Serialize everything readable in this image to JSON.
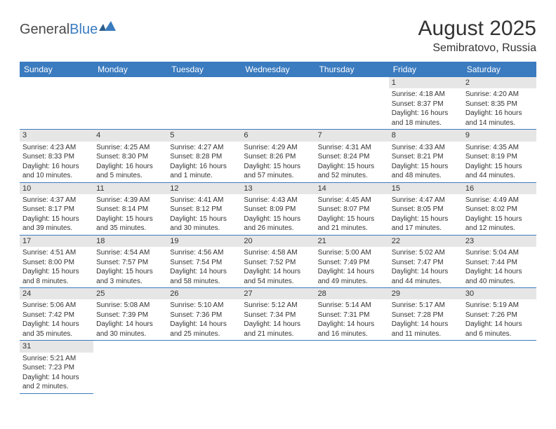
{
  "brand": {
    "part1": "General",
    "part2": "Blue"
  },
  "header": {
    "title": "August 2025",
    "location": "Semibratovo, Russia"
  },
  "colors": {
    "header_bg": "#3b7bbf",
    "header_text": "#ffffff",
    "daynum_bg": "#e6e6e6",
    "cell_border": "#3b7bbf",
    "body_text": "#333333",
    "logo_blue": "#3b7bbf"
  },
  "dayNames": [
    "Sunday",
    "Monday",
    "Tuesday",
    "Wednesday",
    "Thursday",
    "Friday",
    "Saturday"
  ],
  "weeks": [
    [
      null,
      null,
      null,
      null,
      null,
      {
        "n": "1",
        "sunrise": "Sunrise: 4:18 AM",
        "sunset": "Sunset: 8:37 PM",
        "daylight": "Daylight: 16 hours and 18 minutes."
      },
      {
        "n": "2",
        "sunrise": "Sunrise: 4:20 AM",
        "sunset": "Sunset: 8:35 PM",
        "daylight": "Daylight: 16 hours and 14 minutes."
      }
    ],
    [
      {
        "n": "3",
        "sunrise": "Sunrise: 4:23 AM",
        "sunset": "Sunset: 8:33 PM",
        "daylight": "Daylight: 16 hours and 10 minutes."
      },
      {
        "n": "4",
        "sunrise": "Sunrise: 4:25 AM",
        "sunset": "Sunset: 8:30 PM",
        "daylight": "Daylight: 16 hours and 5 minutes."
      },
      {
        "n": "5",
        "sunrise": "Sunrise: 4:27 AM",
        "sunset": "Sunset: 8:28 PM",
        "daylight": "Daylight: 16 hours and 1 minute."
      },
      {
        "n": "6",
        "sunrise": "Sunrise: 4:29 AM",
        "sunset": "Sunset: 8:26 PM",
        "daylight": "Daylight: 15 hours and 57 minutes."
      },
      {
        "n": "7",
        "sunrise": "Sunrise: 4:31 AM",
        "sunset": "Sunset: 8:24 PM",
        "daylight": "Daylight: 15 hours and 52 minutes."
      },
      {
        "n": "8",
        "sunrise": "Sunrise: 4:33 AM",
        "sunset": "Sunset: 8:21 PM",
        "daylight": "Daylight: 15 hours and 48 minutes."
      },
      {
        "n": "9",
        "sunrise": "Sunrise: 4:35 AM",
        "sunset": "Sunset: 8:19 PM",
        "daylight": "Daylight: 15 hours and 44 minutes."
      }
    ],
    [
      {
        "n": "10",
        "sunrise": "Sunrise: 4:37 AM",
        "sunset": "Sunset: 8:17 PM",
        "daylight": "Daylight: 15 hours and 39 minutes."
      },
      {
        "n": "11",
        "sunrise": "Sunrise: 4:39 AM",
        "sunset": "Sunset: 8:14 PM",
        "daylight": "Daylight: 15 hours and 35 minutes."
      },
      {
        "n": "12",
        "sunrise": "Sunrise: 4:41 AM",
        "sunset": "Sunset: 8:12 PM",
        "daylight": "Daylight: 15 hours and 30 minutes."
      },
      {
        "n": "13",
        "sunrise": "Sunrise: 4:43 AM",
        "sunset": "Sunset: 8:09 PM",
        "daylight": "Daylight: 15 hours and 26 minutes."
      },
      {
        "n": "14",
        "sunrise": "Sunrise: 4:45 AM",
        "sunset": "Sunset: 8:07 PM",
        "daylight": "Daylight: 15 hours and 21 minutes."
      },
      {
        "n": "15",
        "sunrise": "Sunrise: 4:47 AM",
        "sunset": "Sunset: 8:05 PM",
        "daylight": "Daylight: 15 hours and 17 minutes."
      },
      {
        "n": "16",
        "sunrise": "Sunrise: 4:49 AM",
        "sunset": "Sunset: 8:02 PM",
        "daylight": "Daylight: 15 hours and 12 minutes."
      }
    ],
    [
      {
        "n": "17",
        "sunrise": "Sunrise: 4:51 AM",
        "sunset": "Sunset: 8:00 PM",
        "daylight": "Daylight: 15 hours and 8 minutes."
      },
      {
        "n": "18",
        "sunrise": "Sunrise: 4:54 AM",
        "sunset": "Sunset: 7:57 PM",
        "daylight": "Daylight: 15 hours and 3 minutes."
      },
      {
        "n": "19",
        "sunrise": "Sunrise: 4:56 AM",
        "sunset": "Sunset: 7:54 PM",
        "daylight": "Daylight: 14 hours and 58 minutes."
      },
      {
        "n": "20",
        "sunrise": "Sunrise: 4:58 AM",
        "sunset": "Sunset: 7:52 PM",
        "daylight": "Daylight: 14 hours and 54 minutes."
      },
      {
        "n": "21",
        "sunrise": "Sunrise: 5:00 AM",
        "sunset": "Sunset: 7:49 PM",
        "daylight": "Daylight: 14 hours and 49 minutes."
      },
      {
        "n": "22",
        "sunrise": "Sunrise: 5:02 AM",
        "sunset": "Sunset: 7:47 PM",
        "daylight": "Daylight: 14 hours and 44 minutes."
      },
      {
        "n": "23",
        "sunrise": "Sunrise: 5:04 AM",
        "sunset": "Sunset: 7:44 PM",
        "daylight": "Daylight: 14 hours and 40 minutes."
      }
    ],
    [
      {
        "n": "24",
        "sunrise": "Sunrise: 5:06 AM",
        "sunset": "Sunset: 7:42 PM",
        "daylight": "Daylight: 14 hours and 35 minutes."
      },
      {
        "n": "25",
        "sunrise": "Sunrise: 5:08 AM",
        "sunset": "Sunset: 7:39 PM",
        "daylight": "Daylight: 14 hours and 30 minutes."
      },
      {
        "n": "26",
        "sunrise": "Sunrise: 5:10 AM",
        "sunset": "Sunset: 7:36 PM",
        "daylight": "Daylight: 14 hours and 25 minutes."
      },
      {
        "n": "27",
        "sunrise": "Sunrise: 5:12 AM",
        "sunset": "Sunset: 7:34 PM",
        "daylight": "Daylight: 14 hours and 21 minutes."
      },
      {
        "n": "28",
        "sunrise": "Sunrise: 5:14 AM",
        "sunset": "Sunset: 7:31 PM",
        "daylight": "Daylight: 14 hours and 16 minutes."
      },
      {
        "n": "29",
        "sunrise": "Sunrise: 5:17 AM",
        "sunset": "Sunset: 7:28 PM",
        "daylight": "Daylight: 14 hours and 11 minutes."
      },
      {
        "n": "30",
        "sunrise": "Sunrise: 5:19 AM",
        "sunset": "Sunset: 7:26 PM",
        "daylight": "Daylight: 14 hours and 6 minutes."
      }
    ],
    [
      {
        "n": "31",
        "sunrise": "Sunrise: 5:21 AM",
        "sunset": "Sunset: 7:23 PM",
        "daylight": "Daylight: 14 hours and 2 minutes."
      },
      null,
      null,
      null,
      null,
      null,
      null
    ]
  ]
}
